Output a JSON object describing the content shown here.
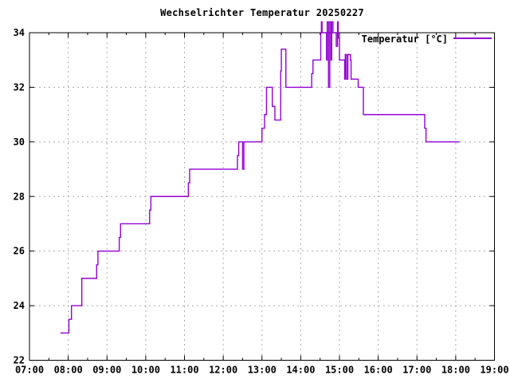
{
  "title": "Wechselrichter Temperatur 20250227",
  "legend": {
    "label": "Temperatur [°C]",
    "position": "top-right"
  },
  "colors": {
    "line": "#9400d3",
    "grid": "#ababab",
    "axis": "#000000",
    "background": "#ffffff",
    "text": "#000000"
  },
  "chart_data": {
    "type": "line",
    "line_style": "step-after",
    "title": "Wechselrichter Temperatur 20250227",
    "xlabel": "",
    "ylabel": "",
    "x_ticks": [
      "07:00",
      "08:00",
      "09:00",
      "10:00",
      "11:00",
      "12:00",
      "13:00",
      "14:00",
      "15:00",
      "16:00",
      "17:00",
      "18:00",
      "19:00"
    ],
    "x_minor_tick_interval_minutes": 30,
    "y_ticks": [
      22,
      24,
      26,
      28,
      30,
      32,
      34
    ],
    "xlim_minutes": [
      420,
      1140
    ],
    "ylim": [
      22,
      34
    ],
    "grid": true,
    "legend_position": "top-right",
    "series": [
      {
        "name": "Temperatur [°C]",
        "color": "#9400d3",
        "points": [
          [
            "07:48",
            23
          ],
          [
            "08:01",
            23.5
          ],
          [
            "08:05",
            24
          ],
          [
            "08:21",
            25
          ],
          [
            "08:44",
            25.5
          ],
          [
            "08:46",
            26
          ],
          [
            "09:19",
            26.5
          ],
          [
            "09:21",
            27
          ],
          [
            "10:06",
            27.5
          ],
          [
            "10:08",
            28
          ],
          [
            "11:06",
            28.5
          ],
          [
            "11:08",
            29
          ],
          [
            "12:22",
            29.5
          ],
          [
            "12:24",
            30
          ],
          [
            "12:30",
            29
          ],
          [
            "12:32",
            30
          ],
          [
            "13:00",
            30.5
          ],
          [
            "13:04",
            31
          ],
          [
            "13:07",
            32
          ],
          [
            "13:16",
            31.3
          ],
          [
            "13:20",
            30.8
          ],
          [
            "13:29",
            32.6
          ],
          [
            "13:30",
            33.4
          ],
          [
            "13:37",
            32
          ],
          [
            "14:17",
            32.5
          ],
          [
            "14:19",
            33
          ],
          [
            "14:31",
            34
          ],
          [
            "14:32",
            34.4
          ],
          [
            "14:33",
            34
          ],
          [
            "14:40",
            33
          ],
          [
            "14:41",
            34.4
          ],
          [
            "14:43",
            32
          ],
          [
            "14:45",
            34.4
          ],
          [
            "14:47",
            33
          ],
          [
            "14:48",
            34.4
          ],
          [
            "14:50",
            34
          ],
          [
            "14:55",
            33.5
          ],
          [
            "14:57",
            34.4
          ],
          [
            "14:58",
            33.8
          ],
          [
            "15:00",
            33
          ],
          [
            "15:08",
            32.3
          ],
          [
            "15:09",
            33.2
          ],
          [
            "15:11",
            32.3
          ],
          [
            "15:13",
            33.2
          ],
          [
            "15:17",
            33
          ],
          [
            "15:18",
            32.3
          ],
          [
            "15:29",
            32
          ],
          [
            "15:37",
            31
          ],
          [
            "17:12",
            30.5
          ],
          [
            "17:14",
            30
          ],
          [
            "18:06",
            30
          ]
        ]
      }
    ]
  }
}
